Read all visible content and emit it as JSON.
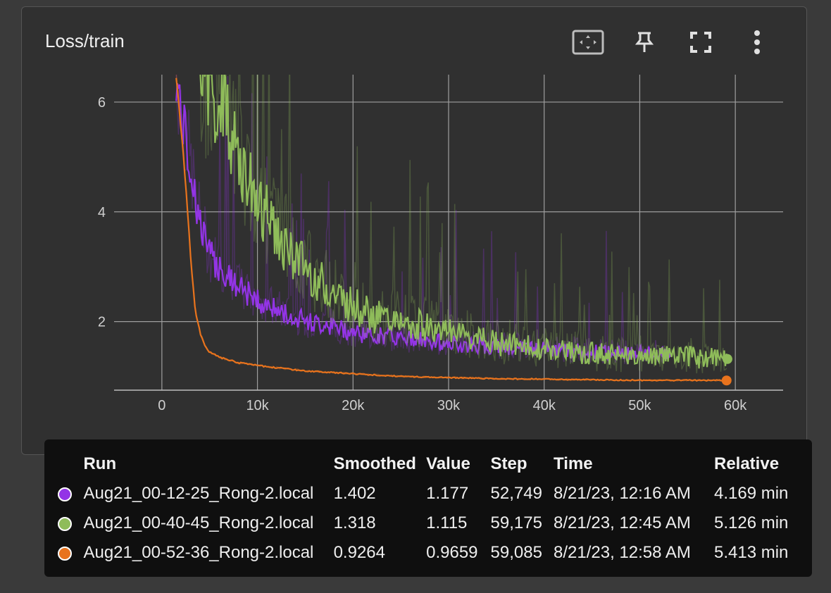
{
  "card": {
    "title": "Loss/train",
    "toolbar": [
      {
        "name": "fit-domain-button",
        "icon": "fit-to-data-icon"
      },
      {
        "name": "pin-button",
        "icon": "pin-icon"
      },
      {
        "name": "fullscreen-button",
        "icon": "fullscreen-icon"
      },
      {
        "name": "more-menu-button",
        "icon": "more-vertical-icon"
      }
    ]
  },
  "chart_data": {
    "type": "line",
    "title": "Loss/train",
    "xlabel": "",
    "ylabel": "",
    "xlim": [
      -5000,
      65000
    ],
    "ylim": [
      0.75,
      6.5
    ],
    "xticks": [
      0,
      10000,
      20000,
      30000,
      40000,
      50000,
      60000
    ],
    "xtick_labels": [
      "0",
      "10k",
      "20k",
      "30k",
      "40k",
      "50k",
      "60k"
    ],
    "yticks": [
      2,
      4,
      6
    ],
    "ytick_labels": [
      "2",
      "4",
      "6"
    ],
    "grid": true,
    "series": [
      {
        "name": "Aug21_00-12-25_Rong-2.local",
        "color": "#9334e6",
        "x": [
          1500,
          2000,
          3000,
          4000,
          5000,
          6000,
          7000,
          8000,
          10000,
          12000,
          15000,
          18000,
          20000,
          25000,
          30000,
          35000,
          40000,
          45000,
          50000,
          52749
        ],
        "y": [
          6.5,
          5.8,
          4.8,
          3.8,
          3.2,
          3.0,
          2.8,
          2.6,
          2.4,
          2.2,
          2.0,
          1.9,
          1.8,
          1.7,
          1.6,
          1.55,
          1.5,
          1.45,
          1.42,
          1.402
        ]
      },
      {
        "name": "Aug21_00-40-45_Rong-2.local",
        "color": "#8fbc5a",
        "x": [
          4000,
          6000,
          8000,
          10000,
          12000,
          14000,
          16000,
          18000,
          20000,
          22000,
          25000,
          28000,
          30000,
          35000,
          40000,
          45000,
          50000,
          55000,
          59175
        ],
        "y": [
          6.5,
          6.0,
          5.0,
          4.2,
          3.6,
          3.2,
          2.8,
          2.5,
          2.3,
          2.1,
          2.0,
          1.9,
          1.8,
          1.6,
          1.5,
          1.42,
          1.38,
          1.35,
          1.318
        ]
      },
      {
        "name": "Aug21_00-52-36_Rong-2.local",
        "color": "#e8731d",
        "x": [
          1500,
          2000,
          2500,
          3000,
          3500,
          4000,
          4500,
          5000,
          6000,
          8000,
          10000,
          15000,
          20000,
          25000,
          30000,
          35000,
          40000,
          45000,
          50000,
          55000,
          59085
        ],
        "y": [
          6.5,
          5.5,
          4.5,
          3.2,
          2.2,
          1.8,
          1.55,
          1.45,
          1.35,
          1.25,
          1.2,
          1.1,
          1.05,
          1.0,
          0.98,
          0.96,
          0.95,
          0.94,
          0.93,
          0.93,
          0.9264
        ]
      }
    ]
  },
  "legend_table": {
    "headers": {
      "run": "Run",
      "smoothed": "Smoothed",
      "value": "Value",
      "step": "Step",
      "time": "Time",
      "relative": "Relative"
    },
    "rows": [
      {
        "color": "#9334e6",
        "run": "Aug21_00-12-25_Rong-2.local",
        "smoothed": "1.402",
        "value": "1.177",
        "step": "52,749",
        "time": "8/21/23, 12:16 AM",
        "relative": "4.169 min"
      },
      {
        "color": "#8fbc5a",
        "run": "Aug21_00-40-45_Rong-2.local",
        "smoothed": "1.318",
        "value": "1.115",
        "step": "59,175",
        "time": "8/21/23, 12:45 AM",
        "relative": "5.126 min"
      },
      {
        "color": "#e8731d",
        "run": "Aug21_00-52-36_Rong-2.local",
        "smoothed": "0.9264",
        "value": "0.9659",
        "step": "59,085",
        "time": "8/21/23, 12:58 AM",
        "relative": "5.413 min"
      }
    ]
  }
}
